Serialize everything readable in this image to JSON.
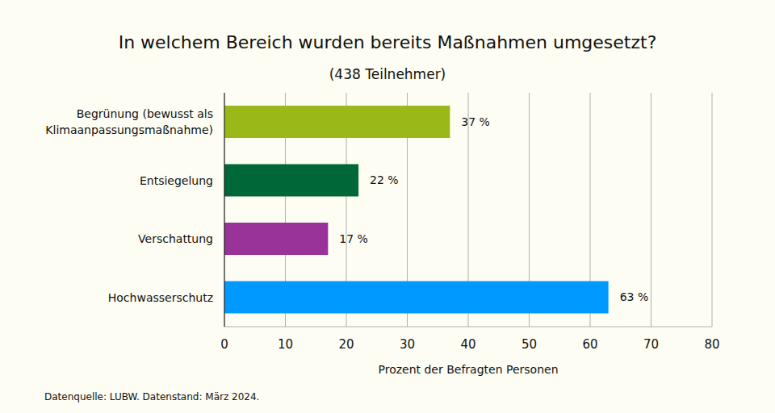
{
  "chart_data": {
    "type": "bar",
    "title": "In welchem Bereich wurden bereits Maßnahmen umgesetzt?",
    "subtitle": "(438 Teilnehmer)",
    "x_label": "Prozent der Befragten Personen",
    "source": "Datenquelle: LUBW. Datenstand: März 2024.",
    "orientation": "horizontal",
    "categories": [
      "Begrünung (bewusst als\nKlimaanpassungsmaßnahme)",
      "Entsiegelung",
      "Verschattung",
      "Hochwasserschutz"
    ],
    "values": [
      37,
      22,
      17,
      63
    ],
    "value_labels": [
      "37 %",
      "22 %",
      "17 %",
      "63 %"
    ],
    "colors": [
      "#9ab817",
      "#006838",
      "#993399",
      "#0099ff"
    ],
    "xlim": [
      0,
      80
    ],
    "xticks": [
      0,
      10,
      20,
      30,
      40,
      50,
      60,
      70,
      80
    ],
    "grid": true,
    "data_labels": true
  }
}
